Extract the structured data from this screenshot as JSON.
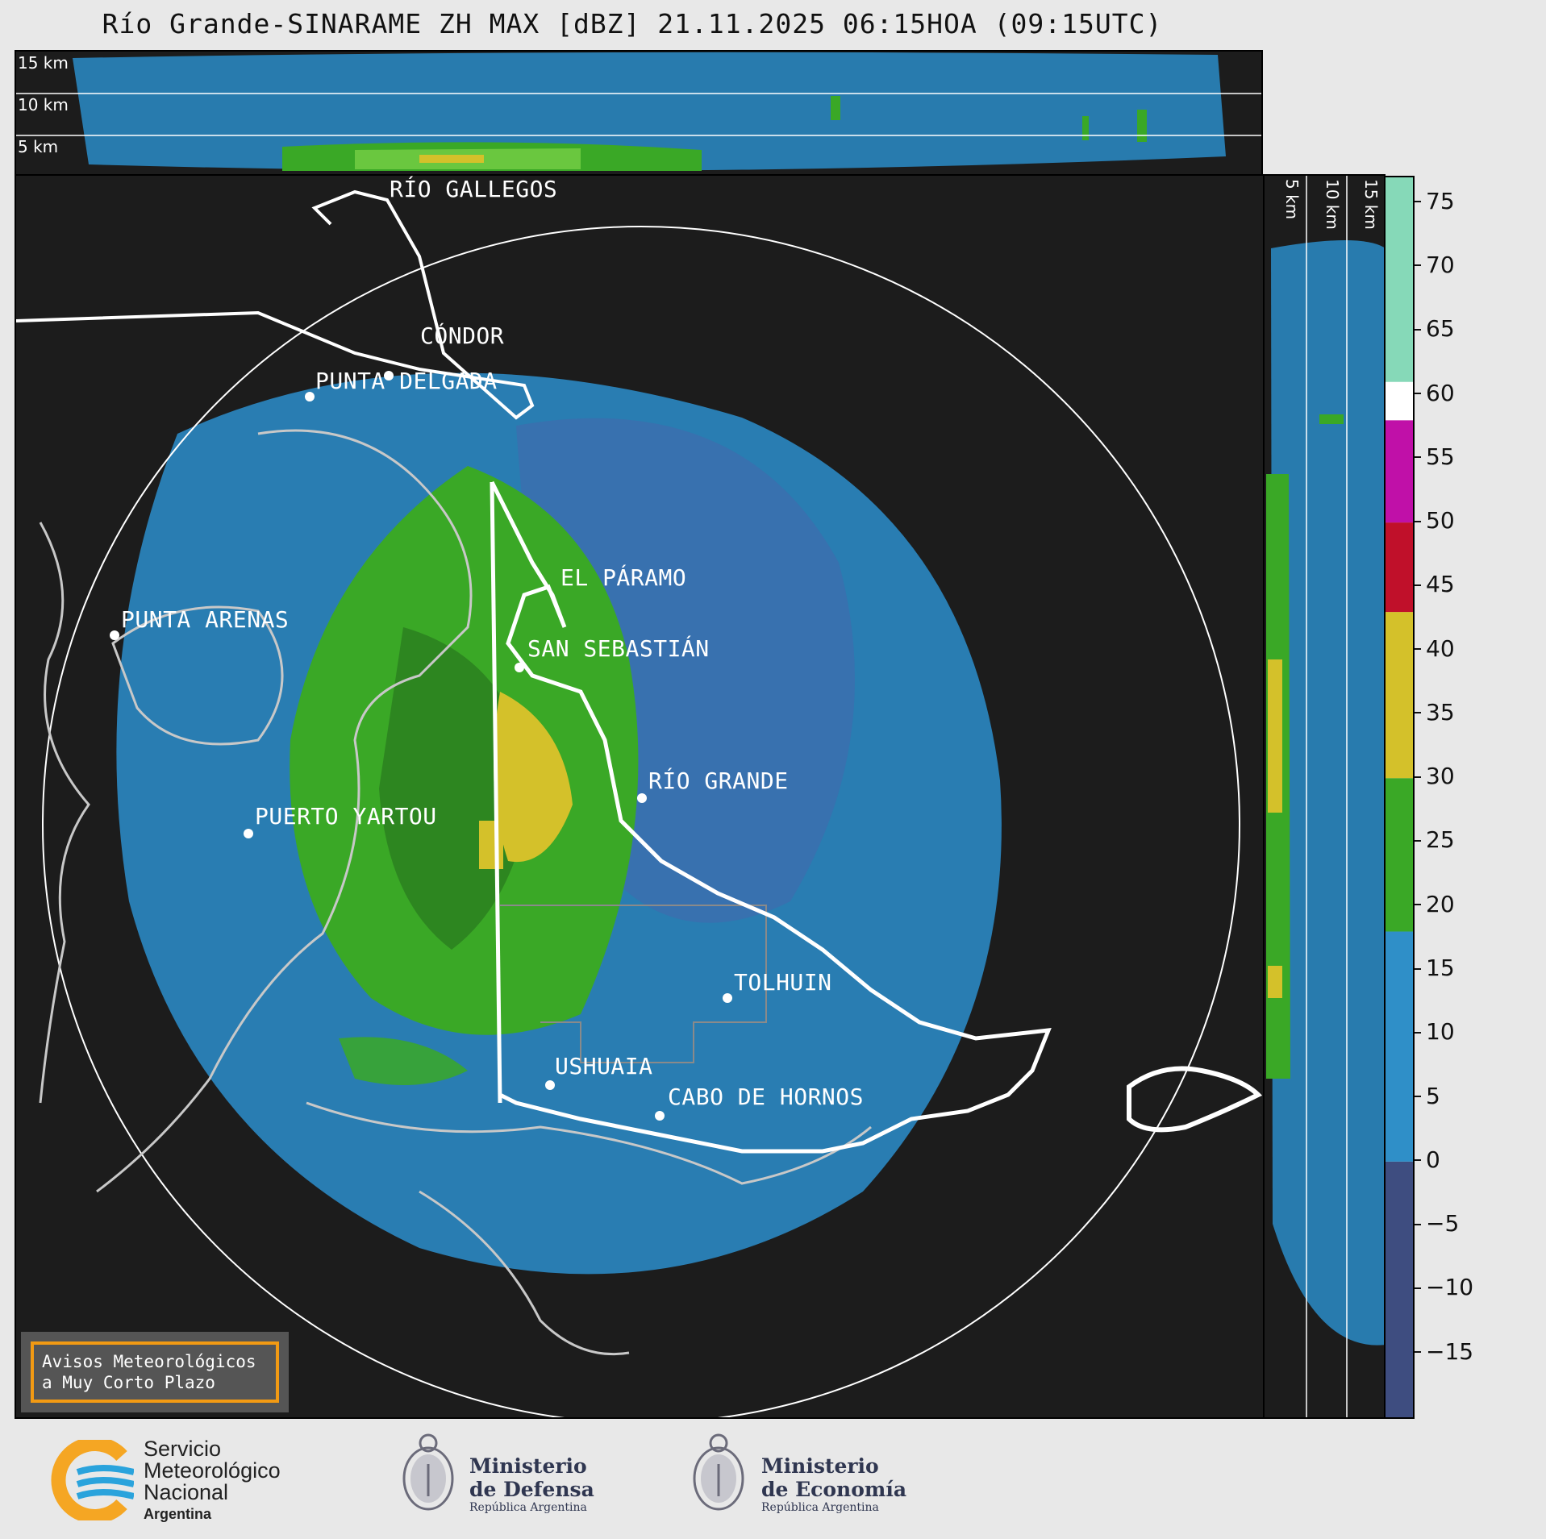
{
  "title": "Río Grande-SINARAME ZH MAX [dBZ] 21.11.2025 06:15HOA (09:15UTC)",
  "top_profile": {
    "labels": [
      "15 km",
      "10 km",
      "5 km"
    ]
  },
  "side_profile": {
    "labels": [
      "5 km",
      "10 km",
      "15 km"
    ]
  },
  "cities": [
    {
      "name": "RÍO GALLEGOS"
    },
    {
      "name": "CÓNDOR"
    },
    {
      "name": "PUNTA DELGADA"
    },
    {
      "name": "PUNTA ARENAS"
    },
    {
      "name": "EL PÁRAMO"
    },
    {
      "name": "SAN SEBASTIÁN"
    },
    {
      "name": "RÍO GRANDE"
    },
    {
      "name": "PUERTO YARTOU"
    },
    {
      "name": "TOLHUIN"
    },
    {
      "name": "USHUAIA"
    },
    {
      "name": "CABO DE HORNOS"
    }
  ],
  "colorbar": {
    "unit": "dBZ",
    "ticks": [
      "75",
      "70",
      "65",
      "60",
      "55",
      "50",
      "45",
      "40",
      "35",
      "30",
      "25",
      "20",
      "15",
      "10",
      "5",
      "0",
      "−5",
      "−10",
      "−15"
    ],
    "tick_values": [
      75,
      70,
      65,
      60,
      55,
      50,
      45,
      40,
      35,
      30,
      25,
      20,
      15,
      10,
      5,
      0,
      -5,
      -10,
      -15
    ],
    "range": [
      -20,
      77
    ],
    "bands": [
      {
        "from": -20,
        "to": 0,
        "color": "#3e4d80"
      },
      {
        "from": 0,
        "to": 18,
        "color": "#2f8fc8"
      },
      {
        "from": 18,
        "to": 30,
        "color": "#3aa826"
      },
      {
        "from": 30,
        "to": 43,
        "color": "#d4c12a"
      },
      {
        "from": 43,
        "to": 50,
        "color": "#c0102a"
      },
      {
        "from": 50,
        "to": 58,
        "color": "#c010a8"
      },
      {
        "from": 58,
        "to": 61,
        "color": "#ffffff"
      },
      {
        "from": 61,
        "to": 77,
        "color": "#86d9b8"
      }
    ]
  },
  "notice": {
    "line1": "Avisos Meteorológicos",
    "line2": "a Muy Corto Plazo"
  },
  "logos": {
    "smn": {
      "line1": "Servicio",
      "line2": "Meteorológico",
      "line3": "Nacional",
      "line4": "Argentina"
    },
    "defensa": {
      "line1": "Ministerio",
      "line2": "de Defensa",
      "line3": "República Argentina"
    },
    "economia": {
      "line1": "Ministerio",
      "line2": "de Economía",
      "line3": "República Argentina"
    }
  },
  "colors": {
    "accent": "#f29a13",
    "background": "#1c1c1c"
  }
}
